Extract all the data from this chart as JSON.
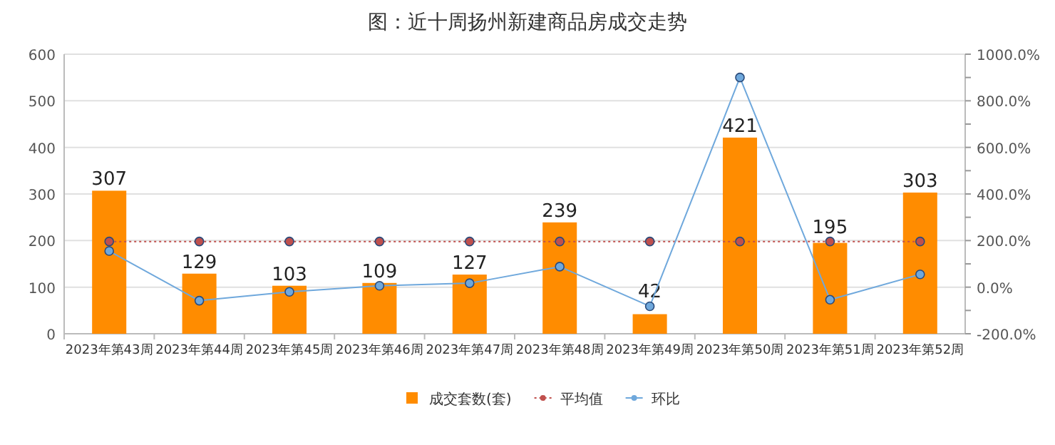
{
  "chart_data": {
    "type": "bar",
    "title": "图：近十周扬州新建商品房成交走势",
    "categories": [
      "2023年第43周",
      "2023年第44周",
      "2023年第45周",
      "2023年第46周",
      "2023年第47周",
      "2023年第48周",
      "2023年第49周",
      "2023年第50周",
      "2023年第51周",
      "2023年第52周"
    ],
    "series": [
      {
        "name": "成交套数(套)",
        "color": "#ff8c00",
        "values": [
          307,
          129,
          103,
          109,
          127,
          239,
          42,
          421,
          195,
          303
        ],
        "value_labels": [
          "307",
          "129",
          "103",
          "109",
          "127",
          "239",
          "42",
          "421",
          "195",
          "303"
        ]
      },
      {
        "name": "平均值",
        "type": "line",
        "color": "#c0504d",
        "line_style": "dotted",
        "marker": "circle",
        "values": [
          198,
          198,
          198,
          198,
          198,
          198,
          198,
          198,
          198,
          198
        ]
      },
      {
        "name": "环比",
        "type": "line",
        "axis": "y2",
        "color": "#6fa8dc",
        "marker": "circle",
        "values": [
          155,
          -58,
          -20,
          6,
          17,
          88,
          -82,
          900,
          -54,
          55
        ]
      }
    ],
    "ylim": [
      0,
      600
    ],
    "yticks": [
      0,
      100,
      200,
      300,
      400,
      500,
      600
    ],
    "y2lim": [
      -200,
      1000
    ],
    "y2ticks": [
      {
        "value": -200,
        "label": "-200.0%"
      },
      {
        "value": -100,
        "label": null
      },
      {
        "value": 0,
        "label": "0.0%"
      },
      {
        "value": 100,
        "label": null
      },
      {
        "value": 200,
        "label": "200.0%"
      },
      {
        "value": 300,
        "label": null
      },
      {
        "value": 400,
        "label": "400.0%"
      },
      {
        "value": 500,
        "label": null
      },
      {
        "value": 600,
        "label": "600.0%"
      },
      {
        "value": 700,
        "label": null
      },
      {
        "value": 800,
        "label": "800.0%"
      },
      {
        "value": 900,
        "label": null
      },
      {
        "value": 1000,
        "label": "1000.0%"
      }
    ],
    "grid": "y",
    "legend": "bottom"
  }
}
